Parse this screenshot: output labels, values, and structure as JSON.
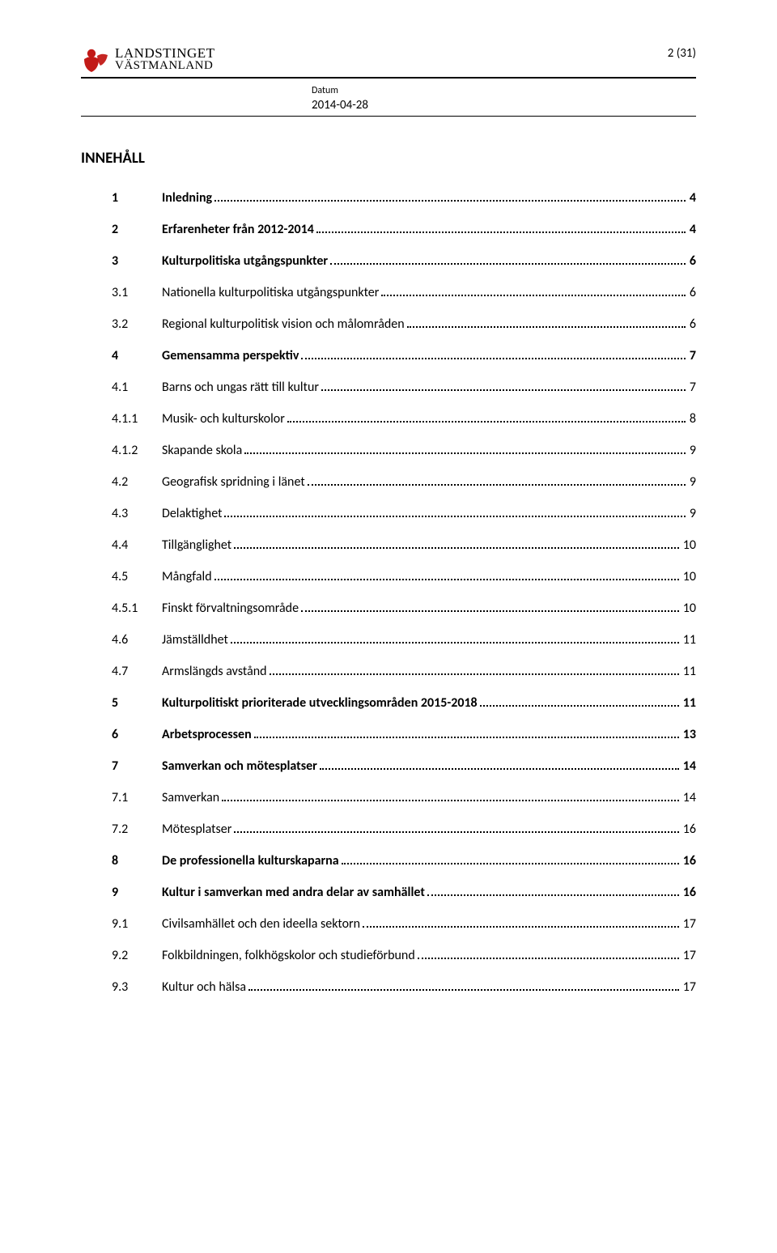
{
  "header": {
    "logo_line1": "LANDSTINGET",
    "logo_line2": "VÄSTMANLAND",
    "page_number": "2 (31)",
    "datum_label": "Datum",
    "datum_value": "2014-04-28"
  },
  "section_title": "INNEHÅLL",
  "colors": {
    "text": "#000000",
    "logo_red": "#c21a17",
    "background": "#ffffff"
  },
  "typography": {
    "body_fontsize": 16,
    "heading_fontsize": 19,
    "meta_label_fontsize": 12,
    "meta_date_fontsize": 15,
    "pagenum_fontsize": 15
  },
  "toc": [
    {
      "level": 1,
      "num": "1",
      "title": "Inledning",
      "page": "4"
    },
    {
      "level": 1,
      "num": "2",
      "title": "Erfarenheter från 2012-2014",
      "page": "4"
    },
    {
      "level": 1,
      "num": "3",
      "title": "Kulturpolitiska utgångspunkter",
      "page": "6"
    },
    {
      "level": 2,
      "num": "3.1",
      "title": "Nationella kulturpolitiska utgångspunkter",
      "page": "6"
    },
    {
      "level": 2,
      "num": "3.2",
      "title": "Regional kulturpolitisk vision och målområden",
      "page": "6"
    },
    {
      "level": 1,
      "num": "4",
      "title": "Gemensamma perspektiv",
      "page": "7"
    },
    {
      "level": 2,
      "num": "4.1",
      "title": "Barns och ungas rätt till kultur",
      "page": "7"
    },
    {
      "level": 3,
      "num": "4.1.1",
      "title": "Musik- och kulturskolor",
      "page": "8"
    },
    {
      "level": 3,
      "num": "4.1.2",
      "title": "Skapande skola",
      "page": "9"
    },
    {
      "level": 2,
      "num": "4.2",
      "title": "Geografisk spridning i länet",
      "page": "9"
    },
    {
      "level": 2,
      "num": "4.3",
      "title": "Delaktighet",
      "page": "9"
    },
    {
      "level": 2,
      "num": "4.4",
      "title": "Tillgänglighet",
      "page": "10"
    },
    {
      "level": 2,
      "num": "4.5",
      "title": "Mångfald",
      "page": "10"
    },
    {
      "level": 3,
      "num": "4.5.1",
      "title": "Finskt förvaltningsområde",
      "page": "10"
    },
    {
      "level": 2,
      "num": "4.6",
      "title": "Jämställdhet",
      "page": "11"
    },
    {
      "level": 2,
      "num": "4.7",
      "title": "Armslängds avstånd",
      "page": "11"
    },
    {
      "level": 1,
      "num": "5",
      "title": "Kulturpolitiskt prioriterade utvecklingsområden 2015-2018",
      "page": "11"
    },
    {
      "level": 1,
      "num": "6",
      "title": "Arbetsprocessen",
      "page": "13"
    },
    {
      "level": 1,
      "num": "7",
      "title": "Samverkan och mötesplatser",
      "page": "14"
    },
    {
      "level": 2,
      "num": "7.1",
      "title": "Samverkan",
      "page": "14"
    },
    {
      "level": 2,
      "num": "7.2",
      "title": "Mötesplatser",
      "page": "16"
    },
    {
      "level": 1,
      "num": "8",
      "title": "De professionella kulturskaparna",
      "page": "16"
    },
    {
      "level": 1,
      "num": "9",
      "title": "Kultur i samverkan med andra delar av samhället",
      "page": "16"
    },
    {
      "level": 2,
      "num": "9.1",
      "title": "Civilsamhället och den ideella sektorn",
      "page": "17"
    },
    {
      "level": 2,
      "num": "9.2",
      "title": "Folkbildningen, folkhögskolor och studieförbund",
      "page": "17"
    },
    {
      "level": 2,
      "num": "9.3",
      "title": "Kultur och hälsa",
      "page": "17"
    }
  ]
}
